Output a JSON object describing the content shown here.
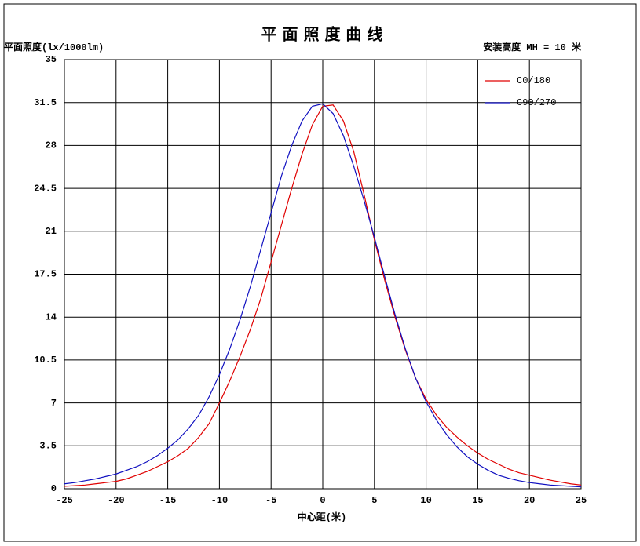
{
  "chart_data": {
    "type": "line",
    "title": "平 面 照 度 曲 线",
    "y_label": "平面照度(lx/1000lm)",
    "annotation": "安装高度 MH = 10 米",
    "x_label": "中心距(米)",
    "x": [
      -25,
      -24,
      -23,
      -22,
      -21,
      -20,
      -19,
      -18,
      -17,
      -16,
      -15,
      -14,
      -13,
      -12,
      -11,
      -10,
      -9,
      -8,
      -7,
      -6,
      -5,
      -4,
      -3,
      -2,
      -1,
      0,
      1,
      2,
      3,
      4,
      5,
      6,
      7,
      8,
      9,
      10,
      11,
      12,
      13,
      14,
      15,
      16,
      17,
      18,
      19,
      20,
      21,
      22,
      23,
      24,
      25
    ],
    "series": [
      {
        "name": "C0/180",
        "color": "#e00000",
        "values": [
          0.2,
          0.25,
          0.3,
          0.4,
          0.5,
          0.6,
          0.8,
          1.1,
          1.4,
          1.8,
          2.2,
          2.7,
          3.3,
          4.2,
          5.3,
          7.0,
          8.8,
          10.8,
          13.0,
          15.5,
          18.5,
          21.5,
          24.5,
          27.3,
          29.7,
          31.2,
          31.3,
          30.0,
          27.5,
          24.0,
          20.3,
          17.0,
          14.0,
          11.3,
          9.0,
          7.3,
          6.0,
          5.0,
          4.2,
          3.5,
          2.9,
          2.4,
          2.0,
          1.6,
          1.3,
          1.1,
          0.9,
          0.7,
          0.55,
          0.4,
          0.3
        ]
      },
      {
        "name": "C90/270",
        "color": "#1010c0",
        "values": [
          0.4,
          0.5,
          0.65,
          0.8,
          1.0,
          1.2,
          1.5,
          1.8,
          2.2,
          2.7,
          3.3,
          4.0,
          4.9,
          6.0,
          7.5,
          9.3,
          11.4,
          13.8,
          16.5,
          19.5,
          22.5,
          25.5,
          28.0,
          30.0,
          31.2,
          31.4,
          30.6,
          28.8,
          26.3,
          23.5,
          20.5,
          17.3,
          14.2,
          11.4,
          9.0,
          7.1,
          5.6,
          4.4,
          3.4,
          2.6,
          2.0,
          1.5,
          1.1,
          0.85,
          0.65,
          0.5,
          0.4,
          0.3,
          0.25,
          0.2,
          0.15
        ]
      }
    ],
    "xlim": [
      -25,
      25
    ],
    "xticks": [
      -25,
      -20,
      -15,
      -10,
      -5,
      0,
      5,
      10,
      15,
      20,
      25
    ],
    "ylim": [
      0,
      35
    ],
    "yticks": [
      0,
      3.5,
      7,
      10.5,
      14,
      17.5,
      21,
      24.5,
      28,
      31.5,
      35
    ],
    "grid": true,
    "legend": "top-right"
  }
}
